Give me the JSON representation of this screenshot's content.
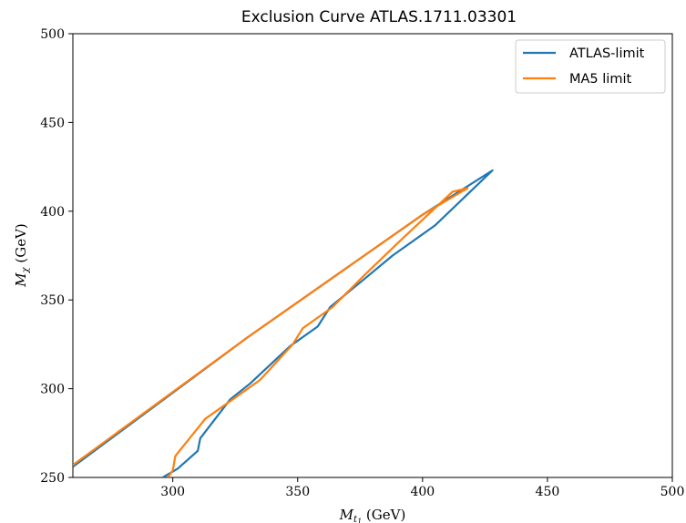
{
  "chart_data": {
    "type": "line",
    "title": "Exclusion Curve ATLAS.1711.03301",
    "xlabel": "M_{t_1} (GeV)",
    "ylabel": "M_{\\chi} (GeV)",
    "xlim": [
      260,
      500
    ],
    "ylim": [
      250,
      500
    ],
    "xticks": [
      300,
      350,
      400,
      450,
      500
    ],
    "yticks": [
      250,
      300,
      350,
      400,
      450,
      500
    ],
    "legend_position": "top-right",
    "grid": false,
    "series": [
      {
        "name": "ATLAS-limit",
        "color": "#1f77b4",
        "x": [
          260,
          330,
          400,
          428,
          405,
          388,
          376,
          363,
          358,
          347,
          331,
          323,
          311,
          310,
          302,
          296
        ],
        "y": [
          256,
          329,
          398,
          423,
          392,
          375,
          361,
          346,
          335,
          324,
          303,
          294,
          272,
          265,
          255,
          250
        ],
        "closed": false
      },
      {
        "name": "MA5 limit",
        "color": "#ff7f0e",
        "x": [
          260,
          330,
          400,
          418,
          412,
          390,
          376,
          364,
          352,
          348,
          335,
          324,
          313,
          301,
          300,
          298
        ],
        "y": [
          257,
          329,
          398,
          413,
          411,
          382,
          363,
          346,
          334,
          325,
          305,
          294,
          283,
          262,
          254,
          250
        ],
        "closed": false
      }
    ]
  }
}
